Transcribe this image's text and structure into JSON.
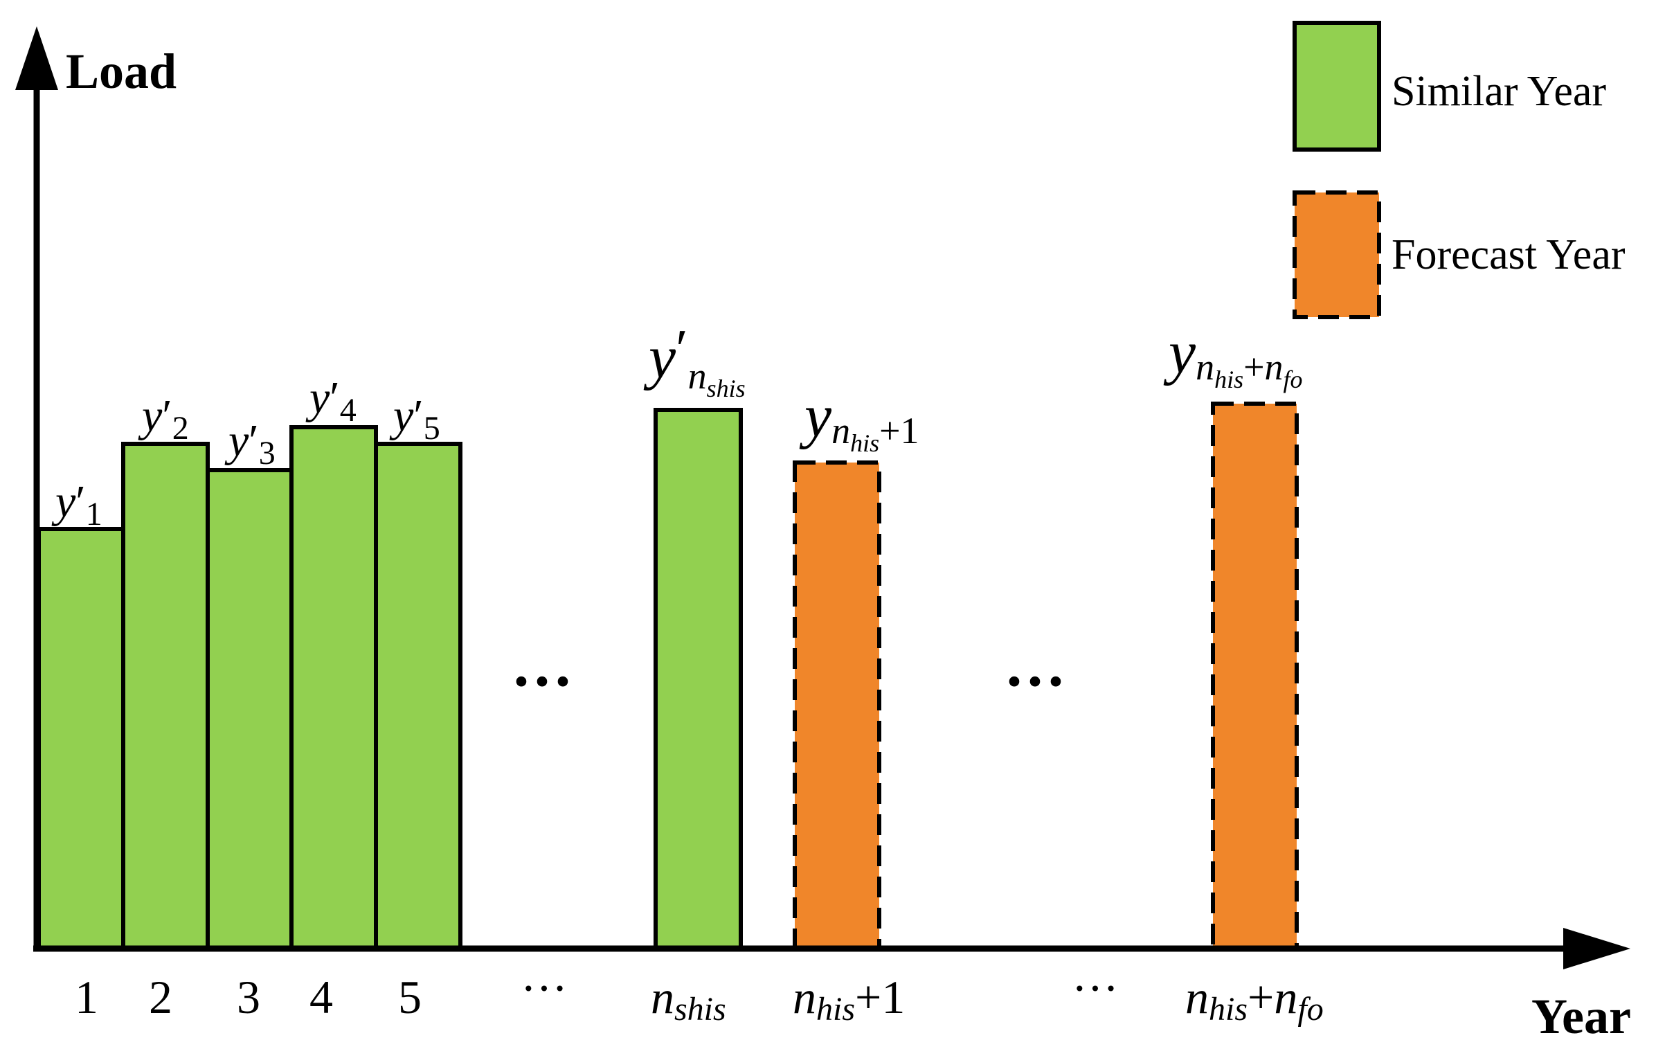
{
  "axes": {
    "y_label": "Load",
    "x_label": "Year"
  },
  "legend": {
    "similar": "Similar Year",
    "forecast": "Forecast Year"
  },
  "colors": {
    "similar_fill": "#92d050",
    "forecast_fill": "#f0862a",
    "stroke": "#000000"
  },
  "ticks": {
    "t1": "1",
    "t2": "2",
    "t3": "3",
    "t4": "4",
    "t5": "5",
    "ellipsis": "···",
    "n_main": "n",
    "shis_sub": "shis",
    "his_sub": "his",
    "plus_one": "+1",
    "plus": "+",
    "fo_sub": "fo"
  },
  "bar_labels": {
    "y": "y",
    "prime": "′",
    "s1": "1",
    "s2": "2",
    "s3": "3",
    "s4": "4",
    "s5": "5",
    "n": "n",
    "shis": "shis",
    "his": "his",
    "plus_one": "+1",
    "plus": "+",
    "fo": "fo"
  },
  "gap_dots": "···"
}
